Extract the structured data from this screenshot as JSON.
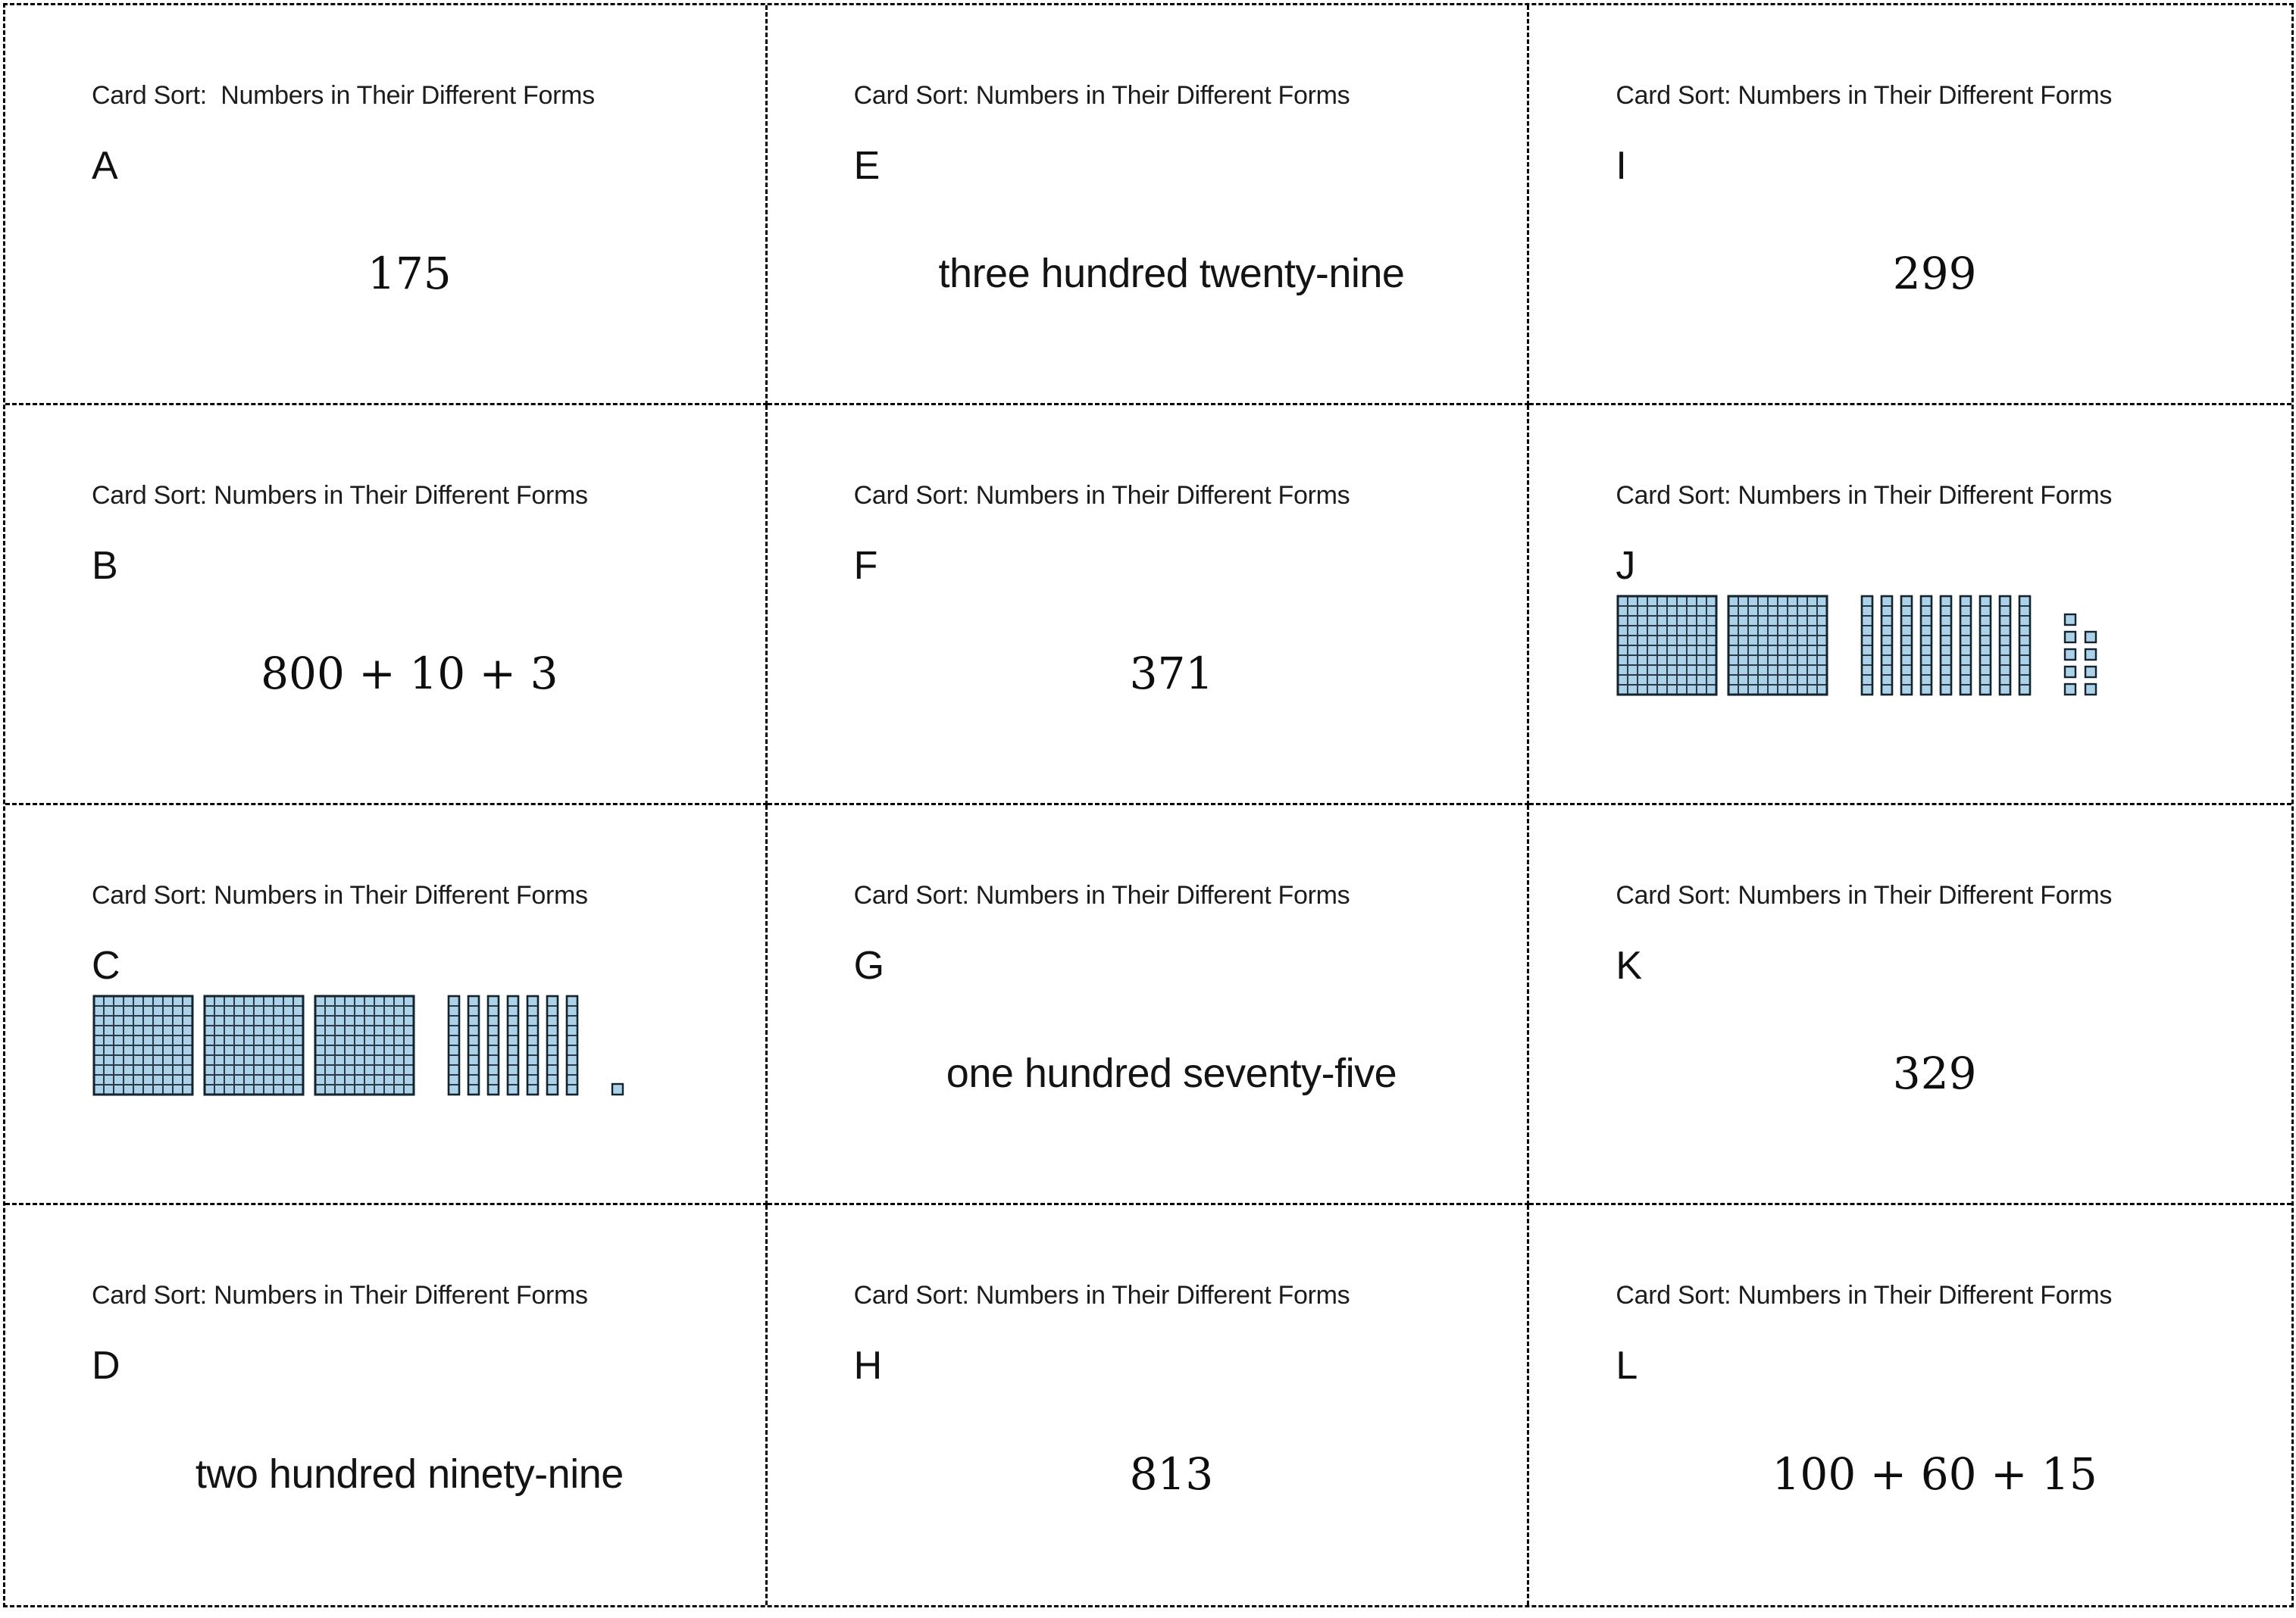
{
  "colors": {
    "block_fill": "#abd2e8",
    "block_cell_stroke": "#2a3b47",
    "block_outline": "#15232d",
    "cut_line": "#000000"
  },
  "cards": [
    {
      "header": "Card Sort:  Numbers in Their Different Forms",
      "letter": "A",
      "type": "numeral",
      "content": "175"
    },
    {
      "header": "Card Sort: Numbers in Their Different Forms",
      "letter": "E",
      "type": "words",
      "content": "three hundred twenty-nine"
    },
    {
      "header": "Card Sort: Numbers in Their Different Forms",
      "letter": "I",
      "type": "numeral",
      "content": "299"
    },
    {
      "header": "Card Sort: Numbers in Their Different Forms",
      "letter": "B",
      "type": "expanded",
      "content": "800 + 10 + 3"
    },
    {
      "header": "Card Sort: Numbers in Their Different Forms",
      "letter": "F",
      "type": "numeral",
      "content": "371"
    },
    {
      "header": "Card Sort: Numbers in Their Different Forms",
      "letter": "J",
      "type": "blocks",
      "blocks": {
        "hundreds": 2,
        "tens": 9,
        "ones": 9,
        "ones_grid": [
          [
            1,
            0
          ],
          [
            1,
            1
          ],
          [
            1,
            1
          ],
          [
            1,
            1
          ],
          [
            1,
            1
          ]
        ]
      },
      "represents": "299"
    },
    {
      "header": "Card Sort: Numbers in Their Different Forms",
      "letter": "C",
      "type": "blocks",
      "blocks": {
        "hundreds": 3,
        "tens": 7,
        "ones": 1,
        "ones_grid": [
          [
            1
          ]
        ]
      },
      "represents": "371"
    },
    {
      "header": "Card Sort: Numbers in Their Different Forms",
      "letter": "G",
      "type": "words",
      "content": "one hundred seventy-five"
    },
    {
      "header": "Card Sort: Numbers in Their Different Forms",
      "letter": "K",
      "type": "numeral",
      "content": "329"
    },
    {
      "header": "Card Sort: Numbers in Their Different Forms",
      "letter": "D",
      "type": "words",
      "content": "two hundred ninety-nine"
    },
    {
      "header": "Card Sort: Numbers in Their Different Forms",
      "letter": "H",
      "type": "numeral",
      "content": "813"
    },
    {
      "header": "Card Sort: Numbers in Their Different Forms",
      "letter": "L",
      "type": "expanded",
      "content": "100 + 60 + 15"
    }
  ]
}
